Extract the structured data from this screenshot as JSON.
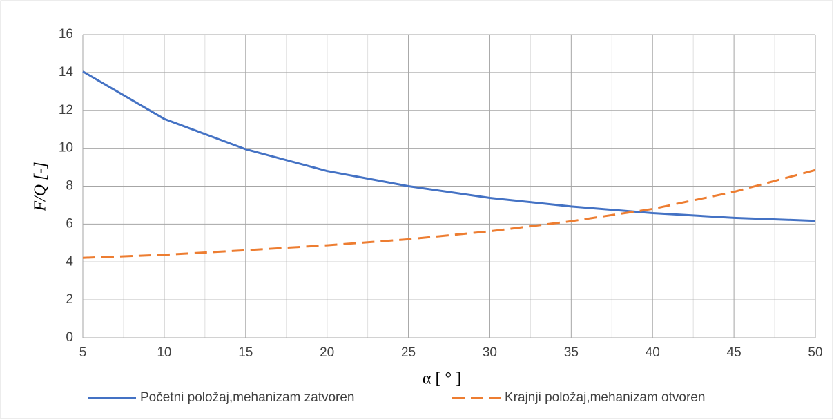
{
  "chart_data": {
    "type": "line",
    "x": [
      5,
      10,
      15,
      20,
      25,
      30,
      35,
      40,
      45,
      50
    ],
    "series": [
      {
        "name": "Početni položaj,mehanizam zatvoren",
        "color": "#4472c4",
        "dash": false,
        "values": [
          14.05,
          11.55,
          9.95,
          8.8,
          8.0,
          7.38,
          6.93,
          6.58,
          6.33,
          6.17
        ]
      },
      {
        "name": "Krajnji položaj,mehanizam otvoren",
        "color": "#ed7d31",
        "dash": true,
        "values": [
          4.22,
          4.38,
          4.62,
          4.88,
          5.2,
          5.62,
          6.15,
          6.8,
          7.7,
          8.85
        ]
      }
    ],
    "xlabel": "α [ ° ]",
    "ylabel": "F/Q [-]",
    "xlim": [
      5,
      50
    ],
    "ylim": [
      0,
      16
    ],
    "xticks": [
      5,
      10,
      15,
      20,
      25,
      30,
      35,
      40,
      45,
      50
    ],
    "xminorticks": [
      7.5,
      12.5,
      17.5,
      22.5,
      27.5,
      32.5,
      37.5,
      42.5,
      47.5
    ],
    "yticks": [
      0,
      2,
      4,
      6,
      8,
      10,
      12,
      14,
      16
    ],
    "grid": true,
    "legend": "bottom"
  }
}
